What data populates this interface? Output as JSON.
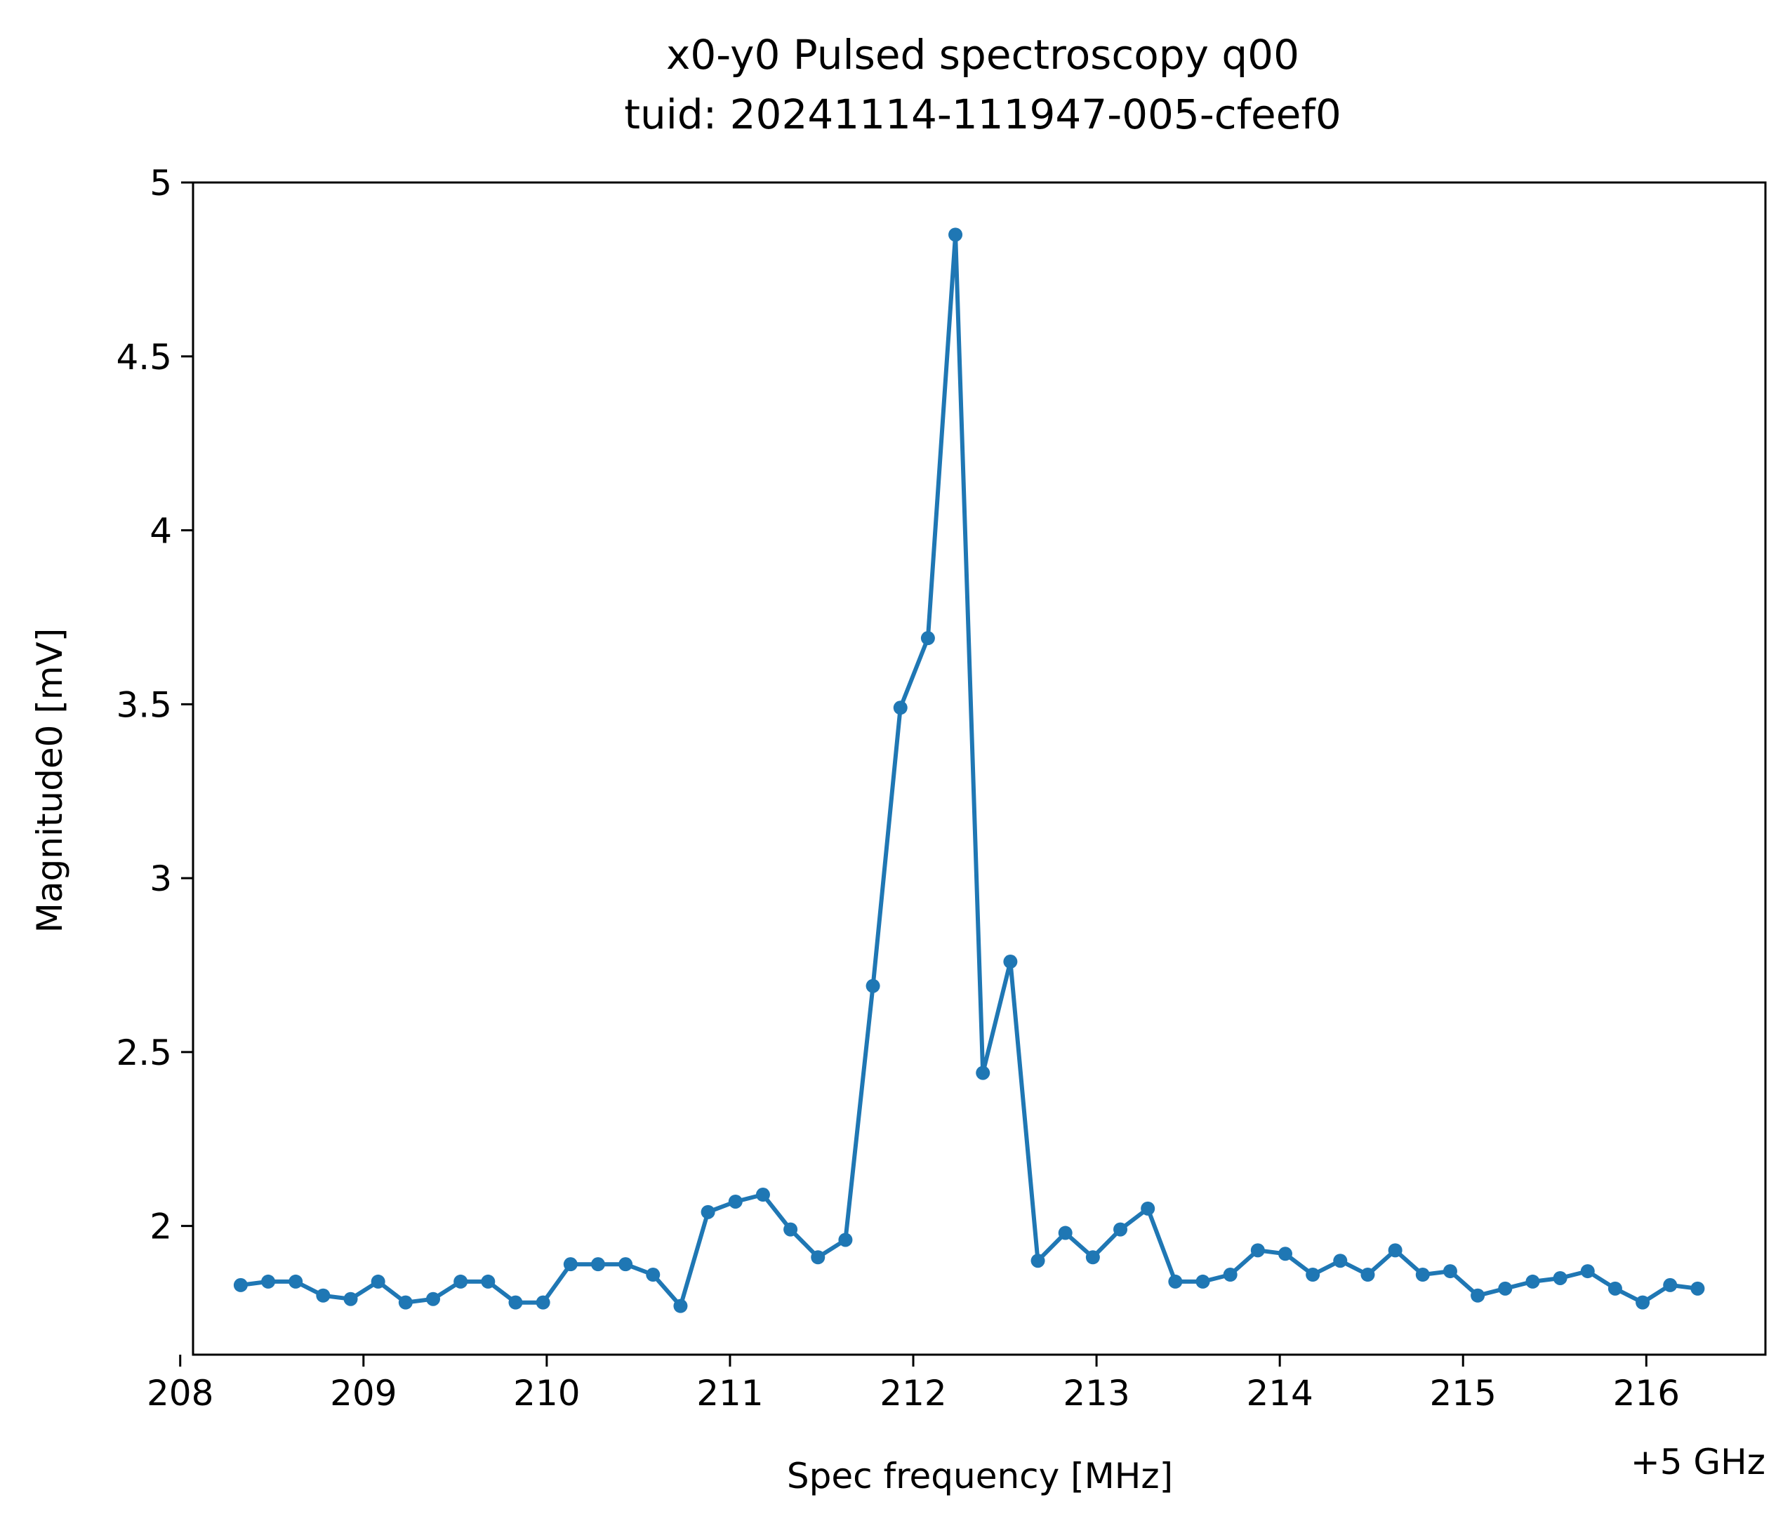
{
  "chart_data": {
    "type": "line",
    "title": "x0-y0 Pulsed spectroscopy q00",
    "subtitle": "tuid: 20241114-111947-005-cfeef0",
    "xlabel": "Spec frequency [MHz]",
    "ylabel": "Magnitude0 [mV]",
    "x_offset_label": "+5 GHz",
    "xlim": [
      208.07,
      216.65
    ],
    "ylim": [
      1.63,
      5.0
    ],
    "x_ticks": [
      208,
      209,
      210,
      211,
      212,
      213,
      214,
      215,
      216
    ],
    "x_tick_labels": [
      "208",
      "209",
      "210",
      "211",
      "212",
      "213",
      "214",
      "215",
      "216"
    ],
    "y_ticks": [
      2,
      2.5,
      3,
      3.5,
      4,
      4.5,
      5
    ],
    "y_tick_labels": [
      "2",
      "2.5",
      "3",
      "3.5",
      "4",
      "4.5",
      "5"
    ],
    "grid": false,
    "series": [
      {
        "color": "#1f77b4",
        "marker": "circle",
        "x": [
          208.33,
          208.48,
          208.63,
          208.78,
          208.93,
          209.08,
          209.23,
          209.38,
          209.53,
          209.68,
          209.83,
          209.98,
          210.13,
          210.28,
          210.43,
          210.58,
          210.73,
          210.88,
          211.03,
          211.18,
          211.33,
          211.48,
          211.63,
          211.78,
          211.93,
          212.08,
          212.23,
          212.38,
          212.53,
          212.68,
          212.83,
          212.98,
          213.13,
          213.28,
          213.43,
          213.58,
          213.73,
          213.88,
          214.03,
          214.18,
          214.33,
          214.48,
          214.63,
          214.78,
          214.93,
          215.08,
          215.23,
          215.38,
          215.53,
          215.68,
          215.83,
          215.98,
          216.13,
          216.28
        ],
        "y": [
          1.83,
          1.84,
          1.84,
          1.8,
          1.79,
          1.84,
          1.78,
          1.79,
          1.84,
          1.84,
          1.78,
          1.78,
          1.89,
          1.89,
          1.89,
          1.86,
          1.77,
          2.04,
          2.07,
          2.09,
          1.99,
          1.91,
          1.96,
          2.69,
          3.49,
          3.69,
          4.85,
          2.44,
          2.76,
          1.9,
          1.98,
          1.91,
          1.99,
          2.05,
          1.84,
          1.84,
          1.86,
          1.93,
          1.92,
          1.86,
          1.9,
          1.86,
          1.93,
          1.86,
          1.87,
          1.8,
          1.82,
          1.84,
          1.85,
          1.87,
          1.82,
          1.78,
          1.83,
          1.82
        ]
      }
    ]
  }
}
